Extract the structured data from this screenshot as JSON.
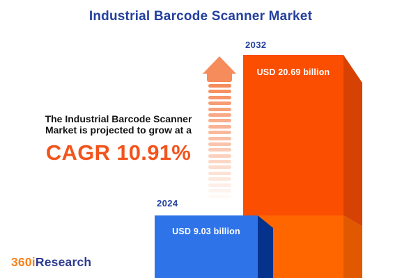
{
  "title": "Industrial Barcode Scanner Market",
  "description": {
    "line1": "The Industrial Barcode Scanner",
    "line2": "Market is projected to grow at a",
    "cagr_text": "CAGR 10.91%"
  },
  "chart_data": {
    "type": "bar",
    "title": "Industrial Barcode Scanner Market",
    "categories": [
      "2024",
      "2032"
    ],
    "values": [
      9.03,
      20.69
    ],
    "unit": "USD billion",
    "value_labels": [
      "USD 9.03 billion",
      "USD 20.69 billion"
    ],
    "cagr_percent": 10.91,
    "xlabel": "",
    "ylabel": "",
    "grid": false,
    "legend_position": "none",
    "style": "3d-infographic-bars",
    "colors": {
      "bar_2024_front": "#2F73E8",
      "bar_2024_side": "#04328C",
      "bar_2032_front": "#FB4E00",
      "bar_2032_side": "#D64204",
      "bar_2032_lower_front": "#FF6600",
      "bar_2032_lower_side": "#E05800",
      "title_text": "#24409E",
      "cagr_text": "#F2541C",
      "arrow": "#F68B5B"
    }
  },
  "logo": {
    "part1": "360i",
    "part2": "Research"
  }
}
